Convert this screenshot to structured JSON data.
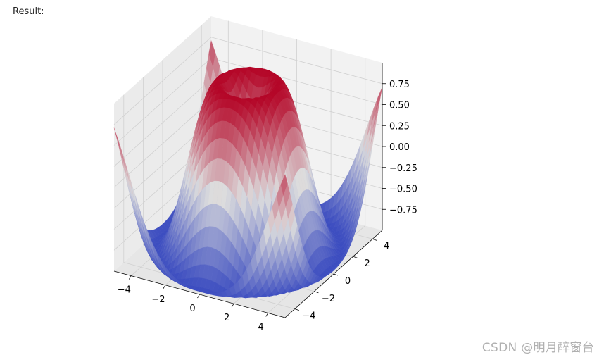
{
  "header": {
    "result_label": "Result:"
  },
  "watermark": "CSDN @明月醉窗台",
  "chart_data": {
    "type": "surface",
    "function": "sin(sqrt(x^2 + y^2))",
    "colormap": "coolwarm",
    "colors": {
      "low": "#3b4cc0",
      "mid": "#dddddd",
      "high": "#b40426",
      "pane": "#f2f2f2",
      "grid": "#d0d0d0"
    },
    "x_range": [
      -5,
      5
    ],
    "y_range": [
      -5,
      5
    ],
    "z_range": [
      -1,
      1
    ],
    "grid_step": 0.25,
    "grid": true,
    "x_ticks": [
      "−4",
      "−2",
      "0",
      "2",
      "4"
    ],
    "y_ticks": [
      "−4",
      "−2",
      "0",
      "2",
      "4"
    ],
    "z_ticks": [
      "0.75",
      "0.50",
      "0.25",
      "0.00",
      "−0.25",
      "−0.50",
      "−0.75"
    ],
    "x_tick_values": [
      -4,
      -2,
      0,
      2,
      4
    ],
    "y_tick_values": [
      -4,
      -2,
      0,
      2,
      4
    ],
    "z_tick_values": [
      0.75,
      0.5,
      0.25,
      0,
      -0.25,
      -0.5,
      -0.75
    ]
  }
}
